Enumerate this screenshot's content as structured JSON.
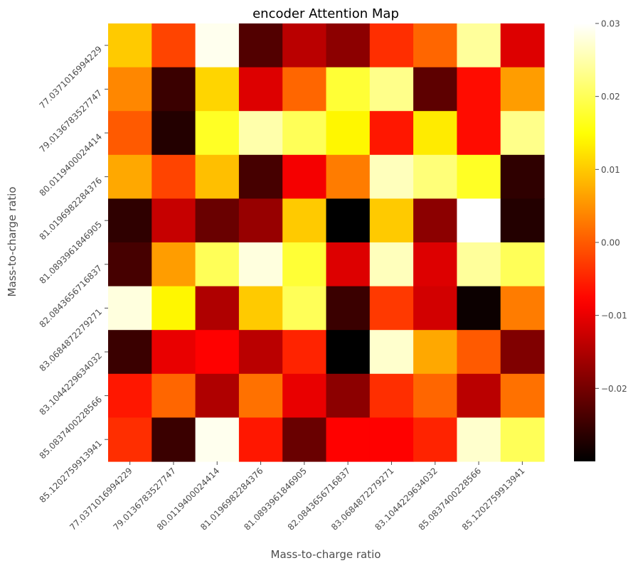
{
  "chart_data": {
    "type": "heatmap",
    "title": "encoder Attention Map",
    "xlabel": "Mass-to-charge ratio",
    "ylabel": "Mass-to-charge ratio",
    "x_categories": [
      "77.0371016994229",
      "79.0136783527747",
      "80.0119400024414",
      "81.0196982284376",
      "81.0893961846905",
      "82.0843656716837",
      "83.0684872279271",
      "83.1044229634032",
      "85.0837400228566",
      "85.1202759913941"
    ],
    "y_categories": [
      "77.0371016994229",
      "79.0136783527747",
      "80.0119400024414",
      "81.0196982284376",
      "81.0893961846905",
      "82.0843656716837",
      "83.0684872279271",
      "83.1044229634032",
      "85.0837400228566",
      "85.1202759913941"
    ],
    "values": [
      [
        0.01,
        -0.002,
        0.029,
        -0.023,
        -0.014,
        -0.018,
        -0.004,
        0.001,
        0.024,
        -0.011
      ],
      [
        0.004,
        -0.025,
        0.011,
        -0.011,
        0.001,
        0.018,
        0.023,
        -0.022,
        -0.007,
        0.006
      ],
      [
        0.0,
        -0.027,
        0.017,
        0.025,
        0.02,
        0.014,
        -0.006,
        0.013,
        -0.007,
        0.023
      ],
      [
        0.007,
        -0.002,
        0.009,
        -0.024,
        -0.009,
        0.003,
        0.026,
        0.022,
        0.017,
        -0.026
      ],
      [
        -0.026,
        -0.013,
        -0.021,
        -0.017,
        0.01,
        -0.03,
        0.01,
        -0.018,
        0.03,
        -0.027
      ],
      [
        -0.024,
        0.006,
        0.02,
        0.028,
        0.018,
        -0.011,
        0.026,
        -0.011,
        0.024,
        0.02
      ],
      [
        0.028,
        0.014,
        -0.015,
        0.01,
        0.02,
        -0.025,
        -0.003,
        -0.012,
        -0.029,
        0.003
      ],
      [
        -0.025,
        -0.01,
        -0.008,
        -0.014,
        -0.005,
        -0.03,
        0.027,
        0.007,
        0.0,
        -0.019
      ],
      [
        -0.006,
        0.001,
        -0.015,
        0.002,
        -0.01,
        -0.018,
        -0.004,
        0.001,
        -0.014,
        0.002
      ],
      [
        -0.004,
        -0.025,
        0.029,
        -0.006,
        -0.021,
        -0.008,
        -0.008,
        -0.005,
        0.027,
        0.02
      ]
    ],
    "colormap": "hot",
    "colorbar": {
      "min": -0.03,
      "max": 0.03,
      "ticks": [
        0.03,
        0.02,
        0.01,
        0.0,
        -0.01,
        -0.02
      ],
      "tick_labels": [
        "0.03",
        "0.02",
        "0.01",
        "0.00",
        "−0.01",
        "−0.02"
      ]
    },
    "grid": false,
    "legend": "colorbar-right"
  }
}
